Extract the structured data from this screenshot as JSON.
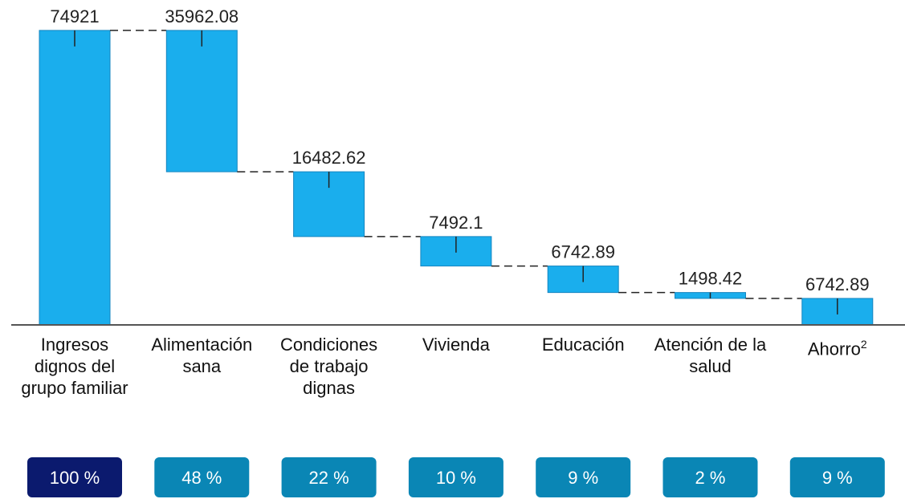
{
  "chart_data": {
    "type": "waterfall",
    "categories": [
      "Ingresos dignos del grupo familiar",
      "Alimentación sana",
      "Condiciones de trabajo dignas",
      "Vivienda",
      "Educación",
      "Atención de la salud",
      "Ahorro"
    ],
    "category_superscripts": [
      null,
      null,
      null,
      null,
      null,
      null,
      "2"
    ],
    "values": [
      74921,
      35962.08,
      16482.62,
      7492.1,
      6742.89,
      1498.42,
      6742.89
    ],
    "measures": [
      "absolute",
      "relative",
      "relative",
      "relative",
      "relative",
      "relative",
      "absolute"
    ],
    "shares": [
      100,
      48,
      22,
      10,
      9,
      2,
      9
    ],
    "share_labels": [
      "100 %",
      "48 %",
      "22 %",
      "10 %",
      "9 %",
      "2 %",
      "9 %"
    ],
    "share_colors": [
      "#0b1a6e",
      "#0a86b5",
      "#0a86b5",
      "#0a86b5",
      "#0a86b5",
      "#0a86b5",
      "#0a86b5"
    ],
    "color": "#1aaeed",
    "ylim": [
      0,
      80000
    ]
  }
}
